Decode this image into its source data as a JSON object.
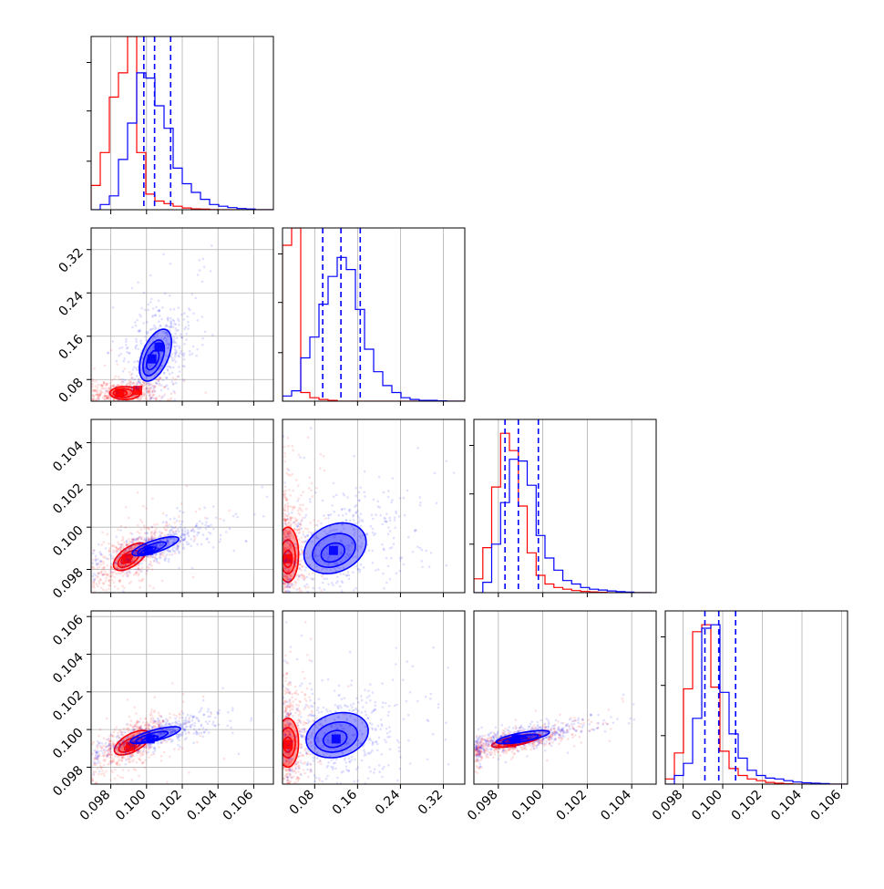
{
  "title": "",
  "colors": {
    "series_a": "#ff0000",
    "series_b": "#0000ff",
    "grid": "#b0b0b0",
    "frame": "#000000"
  },
  "legend": "none",
  "series": [
    {
      "color": "#ff0000",
      "label": ""
    },
    {
      "color": "#0000ff",
      "label": ""
    }
  ],
  "chart_data": [
    {
      "type": "histogram",
      "row": 0,
      "col": 0,
      "xlim": [
        0.0969,
        0.1071
      ],
      "ylim": [
        0,
        1
      ],
      "xticks": [
        0.098,
        0.1,
        0.102,
        0.104,
        0.106
      ],
      "xtick_labels": [
        "0.098",
        "0.100",
        "0.102",
        "0.104",
        "0.106"
      ],
      "bin_edges": [
        0.0969,
        0.09741,
        0.09792,
        0.09843,
        0.09894,
        0.09945,
        0.09996,
        0.10047,
        0.10098,
        0.10149,
        0.102,
        0.10251,
        0.10302,
        0.10353,
        0.10404,
        0.10455,
        0.10506,
        0.10557,
        0.10608,
        0.10659,
        0.1071
      ],
      "series": [
        {
          "color": "#ff0000",
          "counts": [
            0.14,
            0.33,
            0.65,
            0.79,
            1.0,
            0.33,
            0.09,
            0.05,
            0.035,
            0.02,
            0.01,
            0.005,
            0.003,
            0.001,
            0,
            0,
            0,
            0,
            0,
            0
          ]
        },
        {
          "color": "#0000ff",
          "counts": [
            0,
            0.03,
            0.08,
            0.29,
            0.5,
            0.79,
            0.76,
            0.6,
            0.47,
            0.24,
            0.15,
            0.1,
            0.06,
            0.03,
            0.02,
            0.012,
            0.007,
            0.004,
            0,
            0
          ]
        }
      ],
      "quantile_lines": [
        0.09985,
        0.10045,
        0.10135
      ]
    },
    {
      "type": "histogram",
      "row": 1,
      "col": 1,
      "xlim": [
        0.02,
        0.36
      ],
      "ylim": [
        0,
        1
      ],
      "xticks": [
        0.08,
        0.16,
        0.24,
        0.32
      ],
      "xtick_labels": [
        "0.08",
        "0.16",
        "0.24",
        "0.32"
      ],
      "bin_edges": [
        0.02,
        0.037,
        0.054,
        0.071,
        0.088,
        0.105,
        0.122,
        0.139,
        0.156,
        0.173,
        0.19,
        0.207,
        0.224,
        0.241,
        0.258,
        0.275,
        0.292,
        0.309,
        0.326,
        0.343,
        0.36
      ],
      "series": [
        {
          "color": "#ff0000",
          "counts": [
            0.9,
            1.0,
            0.05,
            0.02,
            0.01,
            0.005,
            0,
            0,
            0,
            0,
            0,
            0,
            0,
            0,
            0,
            0,
            0,
            0,
            0,
            0
          ]
        },
        {
          "color": "#0000ff",
          "counts": [
            0.03,
            0.06,
            0.25,
            0.37,
            0.56,
            0.72,
            0.83,
            0.76,
            0.53,
            0.3,
            0.17,
            0.09,
            0.05,
            0.02,
            0.01,
            0.005,
            0.005,
            0.002,
            0,
            0
          ]
        }
      ],
      "quantile_lines": [
        0.095,
        0.129,
        0.165
      ]
    },
    {
      "type": "histogram",
      "row": 2,
      "col": 2,
      "xlim": [
        0.0969,
        0.1051
      ],
      "ylim": [
        0,
        1
      ],
      "xticks": [
        0.098,
        0.1,
        0.102,
        0.104
      ],
      "xtick_labels": [
        "0.098",
        "0.100",
        "0.102",
        "0.104"
      ],
      "bin_edges": [
        0.0969,
        0.0973,
        0.0977,
        0.0981,
        0.0985,
        0.0989,
        0.0993,
        0.0997,
        0.1001,
        0.1005,
        0.1009,
        0.1013,
        0.1017,
        0.1021,
        0.1025,
        0.1029,
        0.1033,
        0.1037,
        0.1041,
        0.1045,
        0.1049
      ],
      "series": [
        {
          "color": "#ff0000",
          "counts": [
            0.08,
            0.26,
            0.61,
            0.92,
            0.82,
            0.5,
            0.23,
            0.1,
            0.05,
            0.03,
            0.02,
            0.012,
            0.007,
            0.004,
            0.002,
            0,
            0,
            0,
            0,
            0
          ]
        },
        {
          "color": "#0000ff",
          "counts": [
            0,
            0.06,
            0.28,
            0.52,
            0.77,
            0.76,
            0.62,
            0.33,
            0.2,
            0.13,
            0.07,
            0.05,
            0.03,
            0.02,
            0.015,
            0.01,
            0.006,
            0.003,
            0,
            0
          ]
        }
      ],
      "quantile_lines": [
        0.0983,
        0.0989,
        0.0998
      ]
    },
    {
      "type": "histogram",
      "row": 3,
      "col": 3,
      "xlim": [
        0.0971,
        0.1063
      ],
      "ylim": [
        0,
        1
      ],
      "xticks": [
        0.098,
        0.1,
        0.102,
        0.104,
        0.106
      ],
      "xtick_labels": [
        "0.098",
        "0.100",
        "0.102",
        "0.104",
        "0.106"
      ],
      "bin_edges": [
        0.0971,
        0.09756,
        0.09802,
        0.09848,
        0.09894,
        0.0994,
        0.09986,
        0.10032,
        0.10078,
        0.10124,
        0.1017,
        0.10216,
        0.10262,
        0.10308,
        0.10354,
        0.104,
        0.10446,
        0.10492,
        0.10538,
        0.10584,
        0.1063
      ],
      "series": [
        {
          "color": "#ff0000",
          "counts": [
            0.03,
            0.18,
            0.55,
            0.88,
            0.92,
            0.56,
            0.19,
            0.09,
            0.05,
            0.03,
            0.02,
            0.01,
            0.005,
            0.002,
            0,
            0,
            0,
            0,
            0,
            0
          ]
        },
        {
          "color": "#0000ff",
          "counts": [
            0,
            0.05,
            0.12,
            0.38,
            0.9,
            0.92,
            0.53,
            0.29,
            0.15,
            0.08,
            0.05,
            0.035,
            0.03,
            0.02,
            0.012,
            0.008,
            0.005,
            0.003,
            0,
            0
          ]
        }
      ],
      "quantile_lines": [
        0.0991,
        0.0998,
        0.10065
      ]
    },
    {
      "type": "scatter",
      "row": 1,
      "col": 0,
      "xlim": [
        0.0969,
        0.1071
      ],
      "ylim": [
        0.04,
        0.36
      ],
      "yticks": [
        0.08,
        0.16,
        0.24,
        0.32
      ],
      "ytick_labels": [
        "0.08",
        "0.16",
        "0.24",
        "0.32"
      ],
      "series": [
        {
          "color": "#ff0000",
          "centers": [
            [
              0.0985,
              0.055
            ],
            [
              0.0995,
              0.06
            ]
          ],
          "contours": [
            [
              0.0988,
              0.055,
              0.00085,
              0.012,
              0
            ],
            [
              0.0987,
              0.055,
              0.00055,
              0.008,
              0
            ],
            [
              0.0986,
              0.055,
              0.0003,
              0.005,
              0
            ]
          ]
        },
        {
          "color": "#0000ff",
          "centers": [
            [
              0.1003,
              0.118
            ],
            [
              0.1007,
              0.14
            ]
          ],
          "contours": [
            [
              0.1005,
              0.125,
              0.0009,
              0.048,
              0.5
            ],
            [
              0.1004,
              0.12,
              0.0006,
              0.033,
              0.5
            ],
            [
              0.10035,
              0.116,
              0.00035,
              0.018,
              0.5
            ]
          ]
        }
      ]
    },
    {
      "type": "scatter",
      "row": 2,
      "col": 0,
      "xlim": [
        0.0969,
        0.1071
      ],
      "ylim": [
        0.0969,
        0.1051
      ],
      "yticks": [
        0.098,
        0.1,
        0.102,
        0.104
      ],
      "ytick_labels": [
        "0.098",
        "0.100",
        "0.102",
        "0.104"
      ],
      "series": [
        {
          "color": "#ff0000",
          "centers": [
            [
              0.0989,
              0.0985
            ]
          ],
          "contours": [
            [
              0.0991,
              0.0986,
              0.00095,
              0.00065,
              0.6
            ],
            [
              0.099,
              0.0985,
              0.0006,
              0.0004,
              0.6
            ],
            [
              0.0989,
              0.0985,
              0.00032,
              0.00022,
              0.6
            ]
          ]
        },
        {
          "color": "#0000ff",
          "centers": [
            [
              0.1001,
              0.0989
            ]
          ],
          "contours": [
            [
              0.1005,
              0.0991,
              0.0013,
              0.00045,
              0.75
            ],
            [
              0.1003,
              0.099,
              0.0008,
              0.0003,
              0.75
            ],
            [
              0.1001,
              0.0989,
              0.00042,
              0.00016,
              0.75
            ]
          ]
        }
      ]
    },
    {
      "type": "scatter",
      "row": 2,
      "col": 1,
      "xlim": [
        0.02,
        0.36
      ],
      "ylim": [
        0.0969,
        0.1051
      ],
      "series": [
        {
          "color": "#ff0000",
          "centers": [
            [
              0.03,
              0.0985
            ]
          ],
          "contours": [
            [
              0.03,
              0.0987,
              0.02,
              0.0013,
              0
            ],
            [
              0.03,
              0.0986,
              0.014,
              0.0008,
              0
            ],
            [
              0.03,
              0.0985,
              0.008,
              0.0004,
              0
            ]
          ]
        },
        {
          "color": "#0000ff",
          "centers": [
            [
              0.115,
              0.0989
            ]
          ],
          "contours": [
            [
              0.118,
              0.099,
              0.058,
              0.0012,
              0.25
            ],
            [
              0.116,
              0.0989,
              0.04,
              0.0008,
              0.25
            ],
            [
              0.114,
              0.0988,
              0.022,
              0.00045,
              0.25
            ]
          ]
        }
      ]
    },
    {
      "type": "scatter",
      "row": 3,
      "col": 0,
      "xlim": [
        0.0969,
        0.1071
      ],
      "ylim": [
        0.0971,
        0.1063
      ],
      "yticks": [
        0.098,
        0.1,
        0.102,
        0.104,
        0.106
      ],
      "ytick_labels": [
        "0.098",
        "0.100",
        "0.102",
        "0.104",
        "0.106"
      ],
      "series": [
        {
          "color": "#ff0000",
          "centers": [
            [
              0.0991,
              0.0991
            ]
          ],
          "contours": [
            [
              0.0992,
              0.0993,
              0.001,
              0.00065,
              0.6
            ],
            [
              0.0991,
              0.0992,
              0.00065,
              0.0004,
              0.6
            ],
            [
              0.0991,
              0.0991,
              0.00033,
              0.00022,
              0.6
            ]
          ]
        },
        {
          "color": "#0000ff",
          "centers": [
            [
              0.1002,
              0.0995
            ]
          ],
          "contours": [
            [
              0.1005,
              0.0997,
              0.0014,
              0.00045,
              0.75
            ],
            [
              0.1003,
              0.0996,
              0.0009,
              0.0003,
              0.75
            ],
            [
              0.1002,
              0.0995,
              0.00045,
              0.00016,
              0.75
            ]
          ]
        }
      ]
    },
    {
      "type": "scatter",
      "row": 3,
      "col": 1,
      "xlim": [
        0.02,
        0.36
      ],
      "ylim": [
        0.0971,
        0.1063
      ],
      "series": [
        {
          "color": "#ff0000",
          "centers": [
            [
              0.03,
              0.0992
            ]
          ],
          "contours": [
            [
              0.03,
              0.0993,
              0.02,
              0.0013,
              0
            ],
            [
              0.03,
              0.0993,
              0.014,
              0.0008,
              0
            ],
            [
              0.03,
              0.0992,
              0.008,
              0.0004,
              0
            ]
          ]
        },
        {
          "color": "#0000ff",
          "centers": [
            [
              0.12,
              0.0995
            ]
          ],
          "contours": [
            [
              0.122,
              0.0997,
              0.058,
              0.0012,
              0.2
            ],
            [
              0.12,
              0.0996,
              0.04,
              0.0008,
              0.2
            ],
            [
              0.118,
              0.0995,
              0.022,
              0.00045,
              0.2
            ]
          ]
        }
      ]
    },
    {
      "type": "scatter",
      "row": 3,
      "col": 2,
      "xlim": [
        0.0969,
        0.1051
      ],
      "ylim": [
        0.0971,
        0.1063
      ],
      "series": [
        {
          "color": "#ff0000",
          "centers": [
            [
              0.0986,
              0.0993
            ]
          ],
          "contours": [
            [
              0.0988,
              0.0994,
              0.0011,
              0.00035,
              0.72
            ],
            [
              0.0987,
              0.0993,
              0.0007,
              0.00023,
              0.72
            ],
            [
              0.0986,
              0.0993,
              0.00035,
              0.00012,
              0.72
            ]
          ]
        },
        {
          "color": "#0000ff",
          "centers": [
            [
              0.0988,
              0.0995
            ]
          ],
          "contours": [
            [
              0.0991,
              0.0996,
              0.0012,
              0.00035,
              0.72
            ],
            [
              0.099,
              0.0995,
              0.0008,
              0.00023,
              0.72
            ],
            [
              0.0989,
              0.0995,
              0.0004,
              0.00012,
              0.72
            ]
          ]
        }
      ]
    }
  ]
}
